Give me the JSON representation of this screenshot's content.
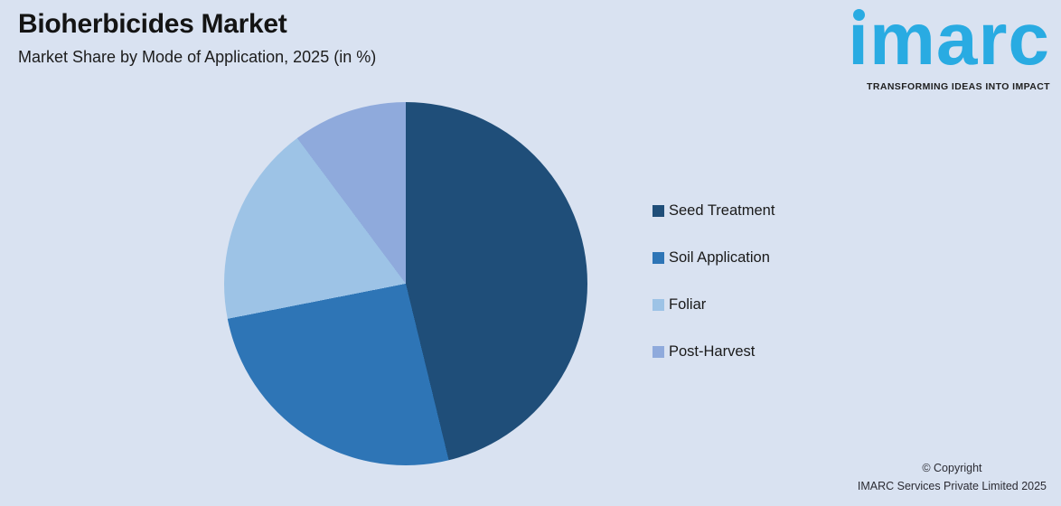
{
  "page": {
    "background": "#D9E2F1"
  },
  "header": {
    "title": "Bioherbicides Market",
    "subtitle": "Market Share by Mode of Application, 2025 (in %)"
  },
  "logo": {
    "wordmark": "imarc",
    "wordmark_display": "ımarc",
    "tagline": "TRANSFORMING IDEAS INTO IMPACT",
    "brand_blue": "#29ABE2",
    "tagline_color": "#1F1F1F"
  },
  "chart_data": {
    "type": "pie",
    "title": "Bioherbicides Market",
    "subtitle": "Market Share by Mode of Application, 2025 (in %)",
    "unit": "%",
    "year": "2025",
    "start_angle_deg": 0,
    "direction": "clockwise",
    "legend_position": "right",
    "data_labels_shown": false,
    "slices": [
      {
        "label": "Seed Treatment",
        "value": 46.2,
        "color": "#1F4E79"
      },
      {
        "label": "Soil Application",
        "value": 25.7,
        "color": "#2E75B6"
      },
      {
        "label": "Foliar",
        "value": 17.9,
        "color": "#9DC3E6"
      },
      {
        "label": "Post-Harvest",
        "value": 10.2,
        "color": "#8FAADC"
      }
    ]
  },
  "footer": {
    "copyright_line1": "© Copyright",
    "copyright_line2": "IMARC Services Private Limited 2025"
  }
}
